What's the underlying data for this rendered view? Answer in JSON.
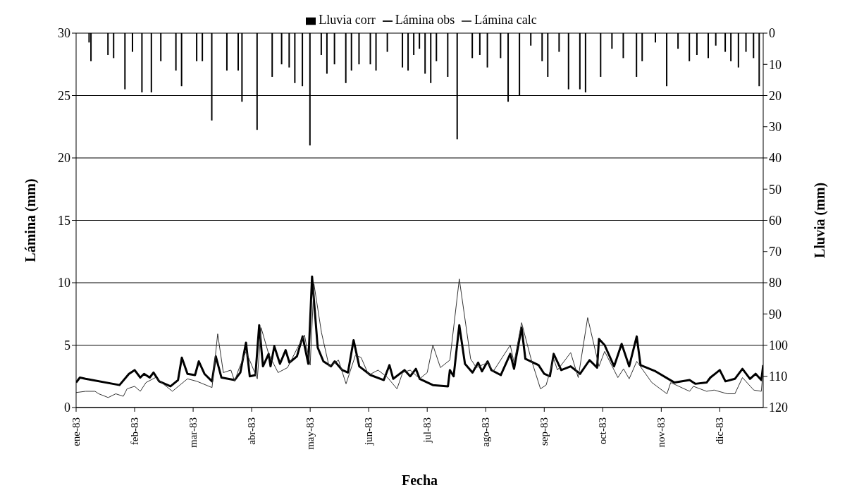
{
  "chart_data": {
    "type": "line",
    "xlabel": "Fecha",
    "ylabel": "Lámina (mm)",
    "y2label": "Lluvia (mm)",
    "xlim": [
      "1983-01-01",
      "1983-12-31"
    ],
    "xticks": [
      {
        "value": "1983-01-01",
        "label": "ene-83"
      },
      {
        "value": "1983-02-01",
        "label": "feb-83"
      },
      {
        "value": "1983-03-04",
        "label": "mar-83"
      },
      {
        "value": "1983-04-04",
        "label": "abr-83"
      },
      {
        "value": "1983-05-05",
        "label": "may-83"
      },
      {
        "value": "1983-06-05",
        "label": "jun-83"
      },
      {
        "value": "1983-07-06",
        "label": "jul-83"
      },
      {
        "value": "1983-08-06",
        "label": "ago-83"
      },
      {
        "value": "1983-09-06",
        "label": "sep-83"
      },
      {
        "value": "1983-10-07",
        "label": "oct-83"
      },
      {
        "value": "1983-11-07",
        "label": "nov-83"
      },
      {
        "value": "1983-12-08",
        "label": "dic-83"
      }
    ],
    "ylim": [
      0,
      30
    ],
    "yticks": [
      0,
      5,
      10,
      15,
      20,
      25,
      30
    ],
    "y2lim": [
      120,
      0
    ],
    "y2ticks": [
      0,
      10,
      20,
      30,
      40,
      50,
      60,
      70,
      80,
      90,
      100,
      110,
      120
    ],
    "grid": "y",
    "legend": "top",
    "series": [
      {
        "name": "Lluvia corr",
        "type": "bar",
        "axis": "y2",
        "color": "#000000",
        "x": [
          "1983-01-08",
          "1983-01-09",
          "1983-01-18",
          "1983-01-21",
          "1983-01-27",
          "1983-01-31",
          "1983-02-05",
          "1983-02-10",
          "1983-02-15",
          "1983-02-23",
          "1983-02-26",
          "1983-03-06",
          "1983-03-09",
          "1983-03-14",
          "1983-03-22",
          "1983-03-28",
          "1983-03-30",
          "1983-04-07",
          "1983-04-15",
          "1983-04-20",
          "1983-04-24",
          "1983-04-27",
          "1983-05-01",
          "1983-05-05",
          "1983-05-11",
          "1983-05-14",
          "1983-05-18",
          "1983-05-24",
          "1983-05-27",
          "1983-05-31",
          "1983-06-06",
          "1983-06-09",
          "1983-06-15",
          "1983-06-23",
          "1983-06-26",
          "1983-06-29",
          "1983-07-02",
          "1983-07-05",
          "1983-07-08",
          "1983-07-11",
          "1983-07-17",
          "1983-07-22",
          "1983-07-30",
          "1983-08-03",
          "1983-08-07",
          "1983-08-14",
          "1983-08-18",
          "1983-08-24",
          "1983-08-30",
          "1983-09-05",
          "1983-09-08",
          "1983-09-14",
          "1983-09-19",
          "1983-09-25",
          "1983-09-28",
          "1983-10-06",
          "1983-10-12",
          "1983-10-18",
          "1983-10-25",
          "1983-10-28",
          "1983-11-04",
          "1983-11-10",
          "1983-11-16",
          "1983-11-22",
          "1983-11-26",
          "1983-12-02",
          "1983-12-06",
          "1983-12-11",
          "1983-12-14",
          "1983-12-18",
          "1983-12-22",
          "1983-12-26",
          "1983-12-29"
        ],
        "values": [
          3,
          9,
          7,
          8,
          18,
          6,
          19,
          19,
          9,
          12,
          17,
          9,
          9,
          28,
          12,
          12,
          22,
          31,
          14,
          10,
          11,
          16,
          17,
          36,
          7,
          13,
          10,
          16,
          12,
          10,
          10,
          12,
          6,
          11,
          12,
          7,
          5,
          13,
          16,
          9,
          14,
          34,
          8,
          7,
          11,
          8,
          22,
          20,
          4,
          9,
          14,
          6,
          18,
          18,
          19,
          14,
          5,
          8,
          14,
          9,
          3,
          17,
          5,
          9,
          7,
          8,
          4,
          6,
          9,
          11,
          6,
          8,
          17
        ]
      },
      {
        "name": "Lámina obs",
        "color": "#000000",
        "x": [
          "1983-01-01",
          "1983-01-03",
          "1983-01-06",
          "1983-01-24",
          "1983-01-29",
          "1983-02-01",
          "1983-02-04",
          "1983-02-06",
          "1983-02-09",
          "1983-02-11",
          "1983-02-14",
          "1983-02-20",
          "1983-02-24",
          "1983-02-26",
          "1983-03-01",
          "1983-03-05",
          "1983-03-07",
          "1983-03-10",
          "1983-03-14",
          "1983-03-16",
          "1983-03-19",
          "1983-03-26",
          "1983-03-29",
          "1983-04-01",
          "1983-04-03",
          "1983-04-06",
          "1983-04-08",
          "1983-04-10",
          "1983-04-13",
          "1983-04-14",
          "1983-04-16",
          "1983-04-19",
          "1983-04-22",
          "1983-04-24",
          "1983-04-28",
          "1983-05-01",
          "1983-05-04",
          "1983-05-06",
          "1983-05-09",
          "1983-05-12",
          "1983-05-16",
          "1983-05-18",
          "1983-05-22",
          "1983-05-25",
          "1983-05-28",
          "1983-05-31",
          "1983-06-06",
          "1983-06-13",
          "1983-06-16",
          "1983-06-18",
          "1983-06-24",
          "1983-06-27",
          "1983-06-30",
          "1983-07-02",
          "1983-07-09",
          "1983-07-17",
          "1983-07-18",
          "1983-07-20",
          "1983-07-23",
          "1983-07-26",
          "1983-07-30",
          "1983-08-02",
          "1983-08-04",
          "1983-08-07",
          "1983-08-09",
          "1983-08-14",
          "1983-08-19",
          "1983-08-21",
          "1983-08-25",
          "1983-08-27",
          "1983-09-03",
          "1983-09-06",
          "1983-09-09",
          "1983-09-11",
          "1983-09-15",
          "1983-09-20",
          "1983-09-25",
          "1983-09-30",
          "1983-10-04",
          "1983-10-05",
          "1983-10-08",
          "1983-10-13",
          "1983-10-17",
          "1983-10-21",
          "1983-10-25",
          "1983-10-27",
          "1983-11-04",
          "1983-11-14",
          "1983-11-22",
          "1983-11-25",
          "1983-12-01",
          "1983-12-03",
          "1983-12-08",
          "1983-12-11",
          "1983-12-16",
          "1983-12-20",
          "1983-12-24",
          "1983-12-27",
          "1983-12-30",
          "1983-12-31"
        ],
        "values": [
          2.0,
          2.4,
          2.3,
          1.8,
          2.7,
          3.0,
          2.4,
          2.7,
          2.4,
          2.8,
          2.1,
          1.7,
          2.2,
          4.0,
          2.7,
          2.6,
          3.7,
          2.7,
          2.1,
          4.1,
          2.4,
          2.2,
          2.8,
          5.2,
          2.5,
          2.6,
          6.6,
          3.3,
          4.3,
          3.3,
          4.9,
          3.5,
          4.6,
          3.6,
          4.1,
          5.7,
          3.5,
          10.5,
          4.8,
          3.7,
          3.3,
          3.7,
          3.0,
          2.8,
          5.4,
          3.3,
          2.6,
          2.2,
          3.4,
          2.3,
          3.0,
          2.5,
          3.1,
          2.3,
          1.8,
          1.7,
          3.0,
          2.5,
          6.6,
          3.5,
          2.8,
          3.6,
          2.9,
          3.7,
          3.0,
          2.6,
          4.3,
          3.1,
          6.4,
          3.9,
          3.4,
          2.7,
          2.5,
          4.3,
          3.0,
          3.3,
          2.7,
          3.8,
          3.2,
          5.5,
          5.0,
          3.3,
          5.1,
          3.3,
          5.7,
          3.4,
          2.9,
          2.0,
          2.2,
          1.9,
          2.0,
          2.4,
          3.0,
          2.1,
          2.3,
          3.1,
          2.3,
          2.7,
          2.2,
          3.4
        ]
      },
      {
        "name": "Lámina calc",
        "color": "#333333",
        "x": [
          "1983-01-01",
          "1983-01-06",
          "1983-01-11",
          "1983-01-13",
          "1983-01-18",
          "1983-01-22",
          "1983-01-26",
          "1983-01-28",
          "1983-02-01",
          "1983-02-04",
          "1983-02-07",
          "1983-02-12",
          "1983-02-21",
          "1983-02-25",
          "1983-03-01",
          "1983-03-06",
          "1983-03-14",
          "1983-03-17",
          "1983-03-20",
          "1983-03-24",
          "1983-03-26",
          "1983-03-28",
          "1983-04-01",
          "1983-04-07",
          "1983-04-09",
          "1983-04-13",
          "1983-04-18",
          "1983-04-23",
          "1983-04-28",
          "1983-05-02",
          "1983-05-05",
          "1983-05-07",
          "1983-05-11",
          "1983-05-15",
          "1983-05-20",
          "1983-05-24",
          "1983-05-29",
          "1983-06-01",
          "1983-06-05",
          "1983-06-10",
          "1983-06-15",
          "1983-06-20",
          "1983-06-23",
          "1983-06-27",
          "1983-07-02",
          "1983-07-06",
          "1983-07-09",
          "1983-07-13",
          "1983-07-18",
          "1983-07-23",
          "1983-07-29",
          "1983-08-01",
          "1983-08-07",
          "1983-08-10",
          "1983-08-19",
          "1983-08-21",
          "1983-08-25",
          "1983-08-30",
          "1983-09-04",
          "1983-09-07",
          "1983-09-11",
          "1983-09-13",
          "1983-09-20",
          "1983-09-24",
          "1983-09-29",
          "1983-10-05",
          "1983-10-08",
          "1983-10-15",
          "1983-10-18",
          "1983-10-21",
          "1983-10-25",
          "1983-11-02",
          "1983-11-10",
          "1983-11-12",
          "1983-11-22",
          "1983-11-24",
          "1983-12-01",
          "1983-12-05",
          "1983-12-12",
          "1983-12-16",
          "1983-12-20",
          "1983-12-26",
          "1983-12-30",
          "1983-12-31"
        ],
        "values": [
          1.2,
          1.3,
          1.3,
          1.1,
          0.8,
          1.1,
          0.9,
          1.5,
          1.7,
          1.3,
          2.0,
          2.4,
          1.3,
          1.8,
          2.3,
          2.1,
          1.6,
          5.9,
          2.8,
          3.0,
          2.1,
          3.0,
          4.5,
          2.3,
          6.4,
          4.3,
          2.8,
          3.2,
          4.7,
          5.8,
          3.4,
          9.9,
          6.0,
          3.3,
          3.8,
          1.9,
          4.2,
          4.0,
          2.6,
          3.0,
          2.4,
          1.5,
          2.8,
          3.0,
          2.3,
          2.8,
          5.0,
          3.2,
          3.8,
          10.3,
          3.9,
          3.2,
          3.6,
          2.9,
          5.0,
          3.6,
          6.8,
          3.9,
          1.5,
          1.8,
          3.9,
          3.0,
          4.4,
          2.4,
          7.2,
          3.3,
          4.5,
          2.4,
          3.1,
          2.3,
          3.7,
          2.0,
          1.1,
          2.0,
          1.3,
          1.7,
          1.3,
          1.4,
          1.1,
          1.1,
          2.4,
          1.4,
          1.3,
          3.1
        ]
      }
    ]
  }
}
